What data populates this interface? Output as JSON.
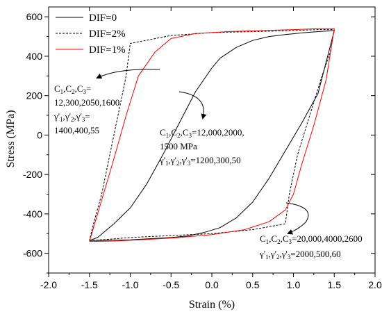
{
  "chart_data": {
    "type": "line",
    "xlabel": "Strain (%)",
    "ylabel": "Stress (MPa)",
    "xlim": [
      -2.0,
      2.0
    ],
    "ylim": [
      -700,
      650
    ],
    "x_ticks": [
      "-2.0",
      "-1.5",
      "-1.0",
      "-0.5",
      "0.0",
      "0.5",
      "1.0",
      "1.5",
      "2.0"
    ],
    "y_ticks": [
      "600",
      "400",
      "200",
      "0",
      "-200",
      "-400",
      "-600"
    ],
    "legend_position": "top-left",
    "series": [
      {
        "name": "DIF=0",
        "color": "#000000",
        "style": "solid",
        "points": [
          [
            -1.5,
            -535
          ],
          [
            -1.0,
            -532
          ],
          [
            -0.5,
            -520
          ],
          [
            -0.3,
            -512
          ],
          [
            -0.1,
            -495
          ],
          [
            0.1,
            -470
          ],
          [
            0.3,
            -420
          ],
          [
            0.5,
            -340
          ],
          [
            0.7,
            -220
          ],
          [
            0.9,
            -80
          ],
          [
            1.1,
            60
          ],
          [
            1.3,
            210
          ],
          [
            1.5,
            530
          ],
          [
            1.3,
            525
          ],
          [
            1.1,
            518
          ],
          [
            0.9,
            510
          ],
          [
            0.7,
            500
          ],
          [
            0.5,
            480
          ],
          [
            0.3,
            445
          ],
          [
            0.1,
            390
          ],
          [
            0.0,
            340
          ],
          [
            -0.2,
            220
          ],
          [
            -0.4,
            60
          ],
          [
            -0.6,
            -100
          ],
          [
            -0.8,
            -250
          ],
          [
            -1.0,
            -370
          ],
          [
            -1.2,
            -450
          ],
          [
            -1.4,
            -520
          ],
          [
            -1.5,
            -535
          ]
        ]
      },
      {
        "name": "DIF=2%",
        "color": "#000000",
        "style": "dashed",
        "points": [
          [
            -1.5,
            -535
          ],
          [
            -1.3,
            -530
          ],
          [
            -1.0,
            -520
          ],
          [
            -0.5,
            -510
          ],
          [
            0.0,
            -500
          ],
          [
            0.5,
            -480
          ],
          [
            0.9,
            -450
          ],
          [
            0.95,
            -300
          ],
          [
            1.05,
            -100
          ],
          [
            1.2,
            100
          ],
          [
            1.35,
            300
          ],
          [
            1.45,
            420
          ],
          [
            1.5,
            535
          ],
          [
            1.3,
            535
          ],
          [
            1.0,
            530
          ],
          [
            0.5,
            525
          ],
          [
            0.0,
            520
          ],
          [
            -0.5,
            505
          ],
          [
            -1.0,
            465
          ],
          [
            -1.05,
            300
          ],
          [
            -1.15,
            100
          ],
          [
            -1.25,
            -100
          ],
          [
            -1.35,
            -300
          ],
          [
            -1.45,
            -450
          ],
          [
            -1.5,
            -535
          ]
        ]
      },
      {
        "name": "DIF=1%",
        "color": "#ff0000",
        "style": "solid",
        "points": [
          [
            -1.5,
            -540
          ],
          [
            -1.2,
            -538
          ],
          [
            -0.8,
            -530
          ],
          [
            -0.4,
            -520
          ],
          [
            0.0,
            -505
          ],
          [
            0.4,
            -480
          ],
          [
            0.7,
            -440
          ],
          [
            0.9,
            -380
          ],
          [
            1.0,
            -300
          ],
          [
            1.1,
            -150
          ],
          [
            1.25,
            50
          ],
          [
            1.4,
            280
          ],
          [
            1.5,
            540
          ],
          [
            1.3,
            540
          ],
          [
            1.0,
            535
          ],
          [
            0.6,
            530
          ],
          [
            0.2,
            525
          ],
          [
            -0.2,
            515
          ],
          [
            -0.5,
            490
          ],
          [
            -0.7,
            420
          ],
          [
            -0.9,
            300
          ],
          [
            -1.05,
            100
          ],
          [
            -1.2,
            -120
          ],
          [
            -1.35,
            -330
          ],
          [
            -1.45,
            -470
          ],
          [
            -1.5,
            -540
          ]
        ]
      }
    ],
    "annotations": [
      {
        "lines": [
          [
            [
              "C",
              ""
            ],
            [
              "1",
              "sub"
            ],
            [
              ",C",
              ""
            ],
            [
              "2",
              "sub"
            ],
            [
              ",C",
              ""
            ],
            [
              "3",
              "sub"
            ],
            [
              "=",
              ""
            ]
          ],
          [
            [
              "12,300,2050,1600",
              ""
            ]
          ],
          [
            [
              "γ'",
              ""
            ],
            [
              "1",
              "sub"
            ],
            [
              ",γ'",
              ""
            ],
            [
              "2",
              "sub"
            ],
            [
              ",γ'",
              ""
            ],
            [
              "3",
              "sub"
            ],
            [
              "=",
              ""
            ]
          ],
          [
            [
              "1400,400,55",
              ""
            ]
          ]
        ]
      },
      {
        "lines": [
          [
            [
              "C",
              ""
            ],
            [
              "1",
              "sub"
            ],
            [
              ",C",
              ""
            ],
            [
              "2",
              "sub"
            ],
            [
              ",C",
              ""
            ],
            [
              "3",
              "sub"
            ],
            [
              "=12,000,2000,",
              ""
            ]
          ],
          [
            [
              "1500 MPa",
              ""
            ]
          ],
          [
            [
              "γ'",
              ""
            ],
            [
              "1",
              "sub"
            ],
            [
              ",γ'",
              ""
            ],
            [
              "2",
              "sub"
            ],
            [
              ",γ'",
              ""
            ],
            [
              "3",
              "sub"
            ],
            [
              "=1200,300,50",
              ""
            ]
          ]
        ]
      },
      {
        "lines": [
          [
            [
              "C",
              ""
            ],
            [
              "1",
              "sub"
            ],
            [
              ",C",
              ""
            ],
            [
              "2",
              "sub"
            ],
            [
              ",C",
              ""
            ],
            [
              "3",
              "sub"
            ],
            [
              "=20,000,4000,2600",
              ""
            ]
          ],
          [
            [
              "γ'",
              ""
            ],
            [
              "1",
              "sub"
            ],
            [
              ",γ'",
              ""
            ],
            [
              "2",
              "sub"
            ],
            [
              ",γ'",
              ""
            ],
            [
              "3",
              "sub"
            ],
            [
              "=2000,500,60",
              ""
            ]
          ]
        ]
      }
    ]
  }
}
